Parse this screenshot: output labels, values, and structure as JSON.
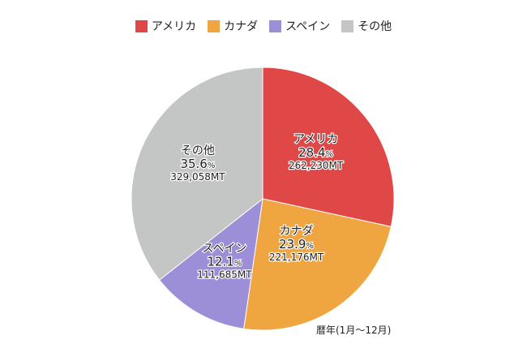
{
  "chart_data": {
    "type": "pie",
    "categories": [
      "アメリカ",
      "カナダ",
      "スペイン",
      "その他"
    ],
    "values": [
      28.4,
      23.9,
      12.1,
      35.6
    ],
    "value_unit": "%",
    "amounts": [
      "262,230MT",
      "221,176MT",
      "111,685MT",
      "329,058MT"
    ],
    "colors": [
      "#e04848",
      "#f0a640",
      "#9d8ed8",
      "#c4c5c5"
    ],
    "legend_position": "top-center",
    "start_angle": "12 o'clock, clockwise"
  },
  "footnote": "暦年(1月〜12月)"
}
